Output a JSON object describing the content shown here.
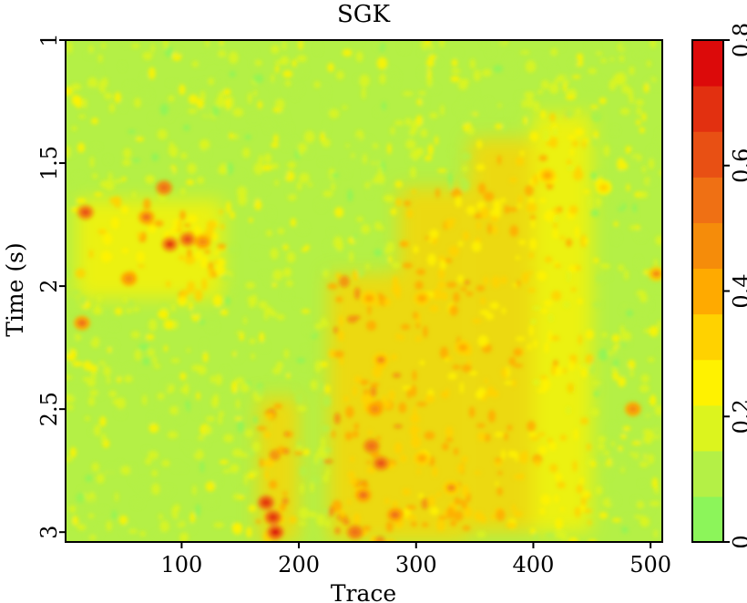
{
  "chart_data": {
    "type": "heatmap",
    "title": "SGK",
    "xlabel": "Trace",
    "ylabel": "Time (s)",
    "xlim": [
      1,
      510
    ],
    "ylim": [
      3.04,
      1.0
    ],
    "xticks": [
      {
        "value": 100,
        "label": "100"
      },
      {
        "value": 200,
        "label": "200"
      },
      {
        "value": 300,
        "label": "300"
      },
      {
        "value": 400,
        "label": "400"
      },
      {
        "value": 500,
        "label": "500"
      }
    ],
    "yticks": [
      {
        "value": 1.0,
        "label": "1"
      },
      {
        "value": 1.5,
        "label": "1.5"
      },
      {
        "value": 2.0,
        "label": "2"
      },
      {
        "value": 2.5,
        "label": "2.5"
      },
      {
        "value": 3.0,
        "label": "3"
      }
    ],
    "colorbar": {
      "range": [
        0,
        0.8
      ],
      "ticks": [
        {
          "value": 0,
          "label": "0"
        },
        {
          "value": 0.2,
          "label": "0.2"
        },
        {
          "value": 0.4,
          "label": "0.4"
        },
        {
          "value": 0.6,
          "label": "0.6"
        },
        {
          "value": 0.8,
          "label": "0.8"
        }
      ],
      "colors": [
        "#8cf55a",
        "#b4f046",
        "#dcf41e",
        "#fff200",
        "#ffd200",
        "#ffaa00",
        "#f58c0a",
        "#ef7014",
        "#e85014",
        "#e23010",
        "#dc0a0a"
      ]
    },
    "background_level": 0.1,
    "regions": [
      {
        "trace": [
          165,
          200
        ],
        "time": [
          2.45,
          3.04
        ],
        "level": 0.35
      },
      {
        "trace": [
          225,
          285
        ],
        "time": [
          1.95,
          3.04
        ],
        "level": 0.35
      },
      {
        "trace": [
          285,
          345
        ],
        "time": [
          1.6,
          3.04
        ],
        "level": 0.32
      },
      {
        "trace": [
          345,
          400
        ],
        "time": [
          1.4,
          3.0
        ],
        "level": 0.28
      },
      {
        "trace": [
          400,
          450
        ],
        "time": [
          1.3,
          3.0
        ],
        "level": 0.24
      },
      {
        "trace": [
          10,
          135
        ],
        "time": [
          1.65,
          2.05
        ],
        "level": 0.27
      }
    ],
    "hotspots": [
      {
        "trace": 172,
        "time": 2.88,
        "value": 0.7
      },
      {
        "trace": 178,
        "time": 2.94,
        "value": 0.75
      },
      {
        "trace": 180,
        "time": 3.0,
        "value": 0.78
      },
      {
        "trace": 262,
        "time": 2.65,
        "value": 0.6
      },
      {
        "trace": 270,
        "time": 2.72,
        "value": 0.62
      },
      {
        "trace": 255,
        "time": 2.85,
        "value": 0.58
      },
      {
        "trace": 248,
        "time": 3.0,
        "value": 0.6
      },
      {
        "trace": 282,
        "time": 2.93,
        "value": 0.55
      },
      {
        "trace": 265,
        "time": 2.5,
        "value": 0.5
      },
      {
        "trace": 270,
        "time": 2.3,
        "value": 0.45
      },
      {
        "trace": 260,
        "time": 2.05,
        "value": 0.42
      },
      {
        "trace": 305,
        "time": 2.05,
        "value": 0.4
      },
      {
        "trace": 305,
        "time": 2.7,
        "value": 0.42
      },
      {
        "trace": 90,
        "time": 1.83,
        "value": 0.68
      },
      {
        "trace": 105,
        "time": 1.81,
        "value": 0.65
      },
      {
        "trace": 85,
        "time": 1.6,
        "value": 0.6
      },
      {
        "trace": 18,
        "time": 1.7,
        "value": 0.62
      },
      {
        "trace": 15,
        "time": 2.15,
        "value": 0.55
      },
      {
        "trace": 70,
        "time": 1.72,
        "value": 0.55
      },
      {
        "trace": 55,
        "time": 1.97,
        "value": 0.5
      },
      {
        "trace": 118,
        "time": 1.82,
        "value": 0.5
      },
      {
        "trace": 340,
        "time": 2.25,
        "value": 0.38
      },
      {
        "trace": 460,
        "time": 1.6,
        "value": 0.35
      },
      {
        "trace": 485,
        "time": 2.5,
        "value": 0.5
      },
      {
        "trace": 505,
        "time": 1.95,
        "value": 0.45
      },
      {
        "trace": 412,
        "time": 1.55,
        "value": 0.4
      },
      {
        "trace": 330,
        "time": 2.82,
        "value": 0.45
      }
    ],
    "grid": false,
    "legend": "colorbar-right"
  }
}
